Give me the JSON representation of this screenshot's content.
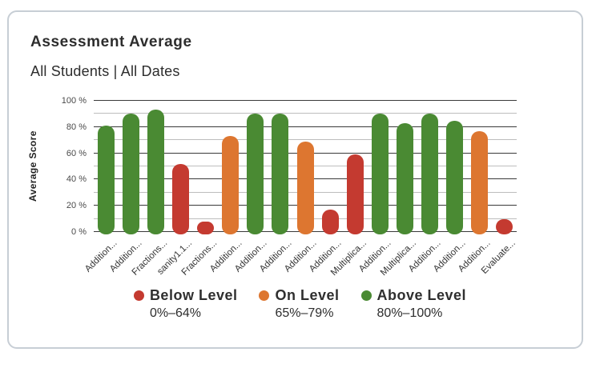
{
  "card": {
    "title": "Assessment Average",
    "subtitle": "All Students | All Dates"
  },
  "chart_data": {
    "type": "bar",
    "title": "Assessment Average",
    "xlabel": "",
    "ylabel": "Average Score",
    "ylim": [
      0,
      100
    ],
    "ytick_step": 20,
    "ytick_labels": [
      "0 %",
      "20 %",
      "40 %",
      "60 %",
      "80 %",
      "100 %"
    ],
    "grid": "horizontal; dark major lines every 20%, light minor lines every 10%",
    "legend_position": "bottom",
    "categories": [
      "Addition...",
      "Addition...",
      "Fractions...",
      "sanity1.1...",
      "Fractions...",
      "Addition...",
      "Addition...",
      "Addition...",
      "Addition...",
      "Addition...",
      "Multiplica...",
      "Addition...",
      "Multiplica...",
      "Addition...",
      "Addition...",
      "Addition...",
      "Evaluate..."
    ],
    "values": [
      81,
      90,
      93,
      52,
      8,
      73,
      90,
      90,
      69,
      17,
      59,
      90,
      83,
      90,
      85,
      77,
      10
    ],
    "levels": [
      {
        "name": "Below Level",
        "range_label": "0%–64%",
        "max": 64,
        "color": "#c43a30"
      },
      {
        "name": "On Level",
        "range_label": "65%–79%",
        "max": 79,
        "color": "#dd7630"
      },
      {
        "name": "Above Level",
        "range_label": "80%–100%",
        "max": 100,
        "color": "#4a8a33"
      }
    ]
  },
  "colors": {
    "card_border": "#c7ced5",
    "major_gridline": "#3a3a3a",
    "minor_gridline": "#bdbdbd",
    "text": "#2d2d2d"
  }
}
